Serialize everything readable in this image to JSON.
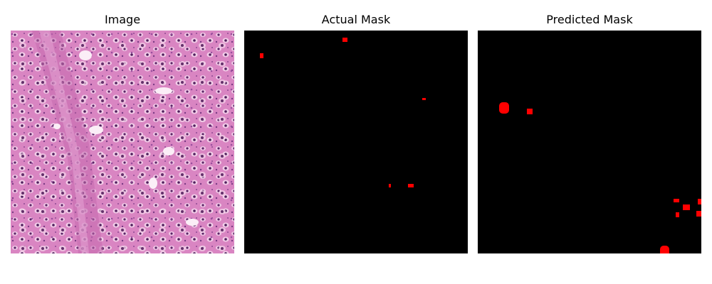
{
  "panels": {
    "image": {
      "title": "Image"
    },
    "actual": {
      "title": "Actual Mask"
    },
    "predicted": {
      "title": "Predicted Mask"
    }
  },
  "colors": {
    "background": "#ffffff",
    "mask_background": "#000000",
    "mask_foreground": "#ff0000",
    "tissue_base": "#d77fbf",
    "nucleus": "#6b2d6f"
  }
}
